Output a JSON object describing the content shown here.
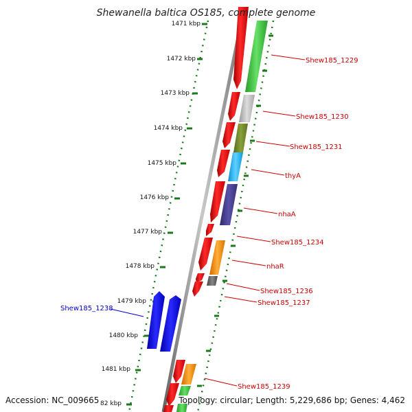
{
  "title": "Shewanella baltica OS185, complete genome",
  "footer": {
    "accession": "Accession: NC_009665",
    "topology": "Topology: circular; Length: 5,229,686 bp; Genes: 4,462"
  },
  "colors": {
    "forward": "#ff0000",
    "reverse_highlight": "#0000ee",
    "label_red": "#cc0000",
    "label_blue": "#0000cc",
    "tick_green": "#1a7a1a",
    "backbone": "#888888"
  },
  "ticks": [
    {
      "label": "1471 kbp"
    },
    {
      "label": "1472 kbp"
    },
    {
      "label": "1473 kbp"
    },
    {
      "label": "1474 kbp"
    },
    {
      "label": "1475 kbp"
    },
    {
      "label": "1476 kbp"
    },
    {
      "label": "1477 kbp"
    },
    {
      "label": "1478 kbp"
    },
    {
      "label": "1479 kbp"
    },
    {
      "label": "1480 kbp"
    },
    {
      "label": "1481 kbp"
    },
    {
      "label": "82 kbp"
    }
  ],
  "gene_labels": [
    {
      "text": "Shew185_1229",
      "color": "#cc0000"
    },
    {
      "text": "Shew185_1230",
      "color": "#cc0000"
    },
    {
      "text": "Shew185_1231",
      "color": "#cc0000"
    },
    {
      "text": "thyA",
      "color": "#cc0000"
    },
    {
      "text": "nhaA",
      "color": "#cc0000"
    },
    {
      "text": "Shew185_1234",
      "color": "#cc0000"
    },
    {
      "text": "nhaR",
      "color": "#cc0000"
    },
    {
      "text": "Shew185_1236",
      "color": "#cc0000"
    },
    {
      "text": "Shew185_1237",
      "color": "#cc0000"
    },
    {
      "text": "Shew185_1238",
      "color": "#0000cc"
    },
    {
      "text": "Shew185_1239",
      "color": "#cc0000"
    }
  ]
}
